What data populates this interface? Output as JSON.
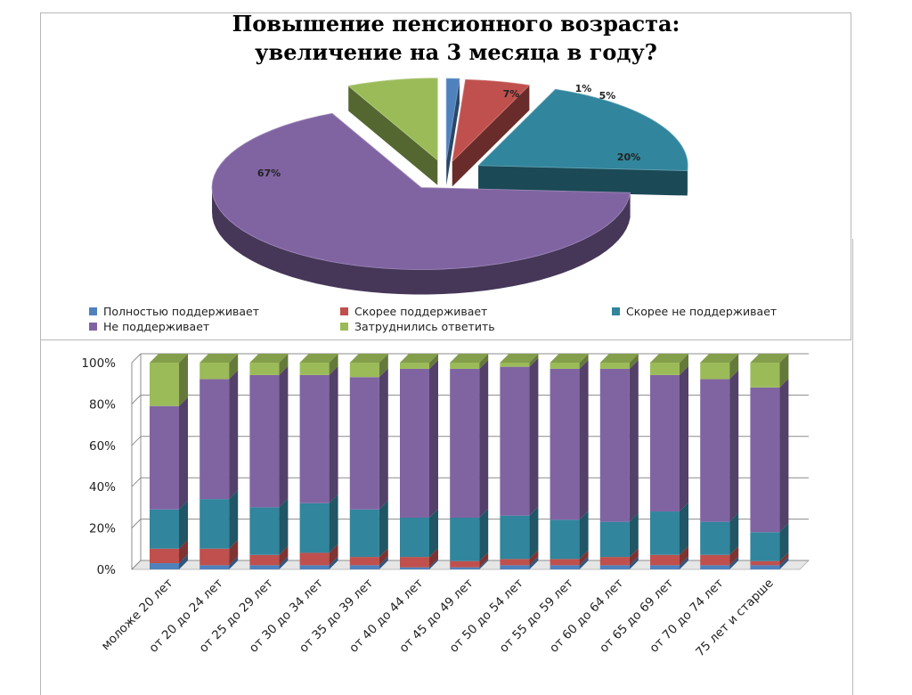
{
  "chart_data": [
    {
      "type": "pie",
      "title": "Повышение пенсионного возраста:",
      "subtitle": "увеличение на 3 месяца в году?",
      "labels": [
        "Полностью поддерживает",
        "Скорее поддерживает",
        "Скорее не поддерживает",
        "Не поддерживает",
        "Затруднились ответить"
      ],
      "values": [
        1,
        5,
        20,
        67,
        7
      ],
      "value_labels": [
        "1%",
        "5%",
        "20%",
        "67%",
        "7%"
      ],
      "legend": "bottom",
      "style": "3d-exploded"
    },
    {
      "type": "bar",
      "stacked": "percent",
      "categories": [
        "моложе 20 лет",
        "от 20 до 24 лет",
        "от 25 до 29 лет",
        "от 30 до 34 лет",
        "от 35 до 39 лет",
        "от 40 до 44 лет",
        "от 45 до 49 лет",
        "от 50 до 54 лет",
        "от 55 до 59 лет",
        "от 60 до 64 лет",
        "от 65 до 69 лет",
        "от 70 до 74 лет",
        "75 лет и старше"
      ],
      "series": [
        {
          "name": "Полностью поддерживает",
          "values": [
            3,
            2,
            2,
            2,
            2,
            1,
            1,
            2,
            2,
            2,
            2,
            2,
            2
          ]
        },
        {
          "name": "Скорее поддерживает",
          "values": [
            7,
            8,
            5,
            6,
            4,
            5,
            3,
            3,
            3,
            4,
            5,
            5,
            2
          ]
        },
        {
          "name": "Скорее не поддерживает",
          "values": [
            19,
            24,
            23,
            24,
            23,
            19,
            21,
            21,
            19,
            17,
            21,
            16,
            14
          ]
        },
        {
          "name": "Не поддерживает",
          "values": [
            50,
            58,
            64,
            62,
            64,
            72,
            72,
            72,
            73,
            74,
            66,
            69,
            70
          ]
        },
        {
          "name": "Затруднились ответить",
          "values": [
            21,
            8,
            6,
            6,
            7,
            3,
            3,
            2,
            3,
            3,
            6,
            8,
            12
          ]
        }
      ],
      "yticks": [
        "0%",
        "20%",
        "40%",
        "60%",
        "80%",
        "100%"
      ],
      "ylim": [
        0,
        100
      ],
      "grid": true
    }
  ],
  "colors": {
    "Полностью поддерживает": "#4f81bd",
    "Скорее поддерживает": "#c0504d",
    "Скорее не поддерживает": "#31859c",
    "Не поддерживает": "#8064a2",
    "Затруднились ответить": "#9bbb59"
  }
}
